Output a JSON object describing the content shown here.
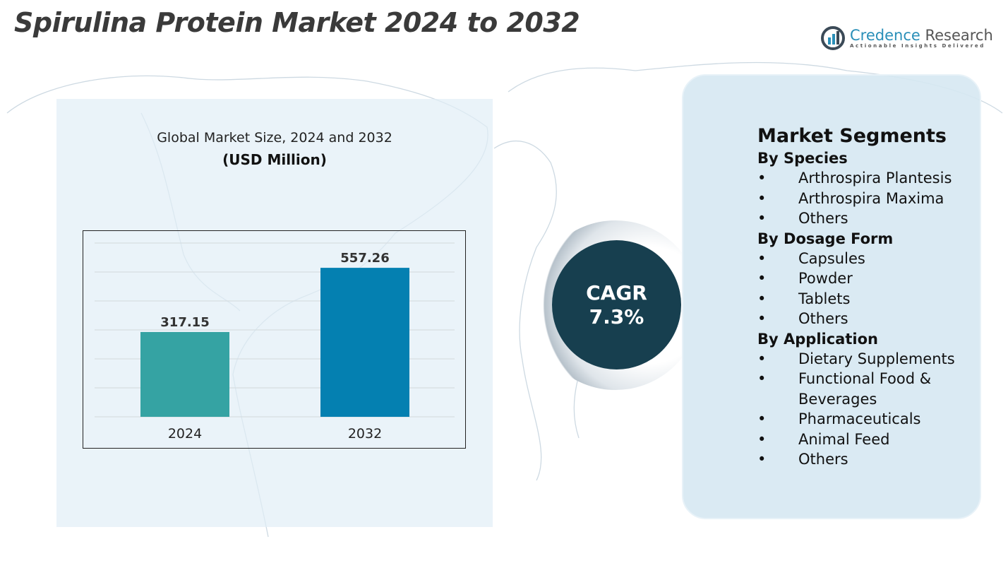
{
  "title": "Spirulina Protein Market 2024 to 2032",
  "logo": {
    "name_part1": "Credence",
    "name_part2": " Research",
    "tagline": "Actionable Insights Delivered",
    "icon": "bar-chart-circle-icon",
    "color": "#2a8fb8"
  },
  "chart_data": {
    "type": "bar",
    "title": "Global Market Size, 2024 and 2032",
    "subtitle": "(USD Million)",
    "categories": [
      "2024",
      "2032"
    ],
    "values": [
      317.15,
      557.26
    ],
    "value_labels": [
      "317.15",
      "557.26"
    ],
    "colors": [
      "#35a3a3",
      "#0480b1"
    ],
    "ylim": [
      0,
      650
    ],
    "grid": true,
    "xlabel": "",
    "ylabel": ""
  },
  "cagr": {
    "label": "CAGR",
    "value": "7.3%"
  },
  "segments": {
    "title": "Market Segments",
    "groups": [
      {
        "heading": "By Species",
        "items": [
          "Arthrospira Plantesis",
          "Arthrospira Maxima",
          "Others"
        ]
      },
      {
        "heading": "By Dosage Form",
        "items": [
          "Capsules",
          "Powder",
          "Tablets",
          "Others"
        ]
      },
      {
        "heading": "By Application",
        "items": [
          "Dietary Supplements",
          "Functional Food & Beverages",
          "Pharmaceuticals",
          "Animal Feed",
          "Others"
        ]
      }
    ],
    "bullet": "•"
  }
}
